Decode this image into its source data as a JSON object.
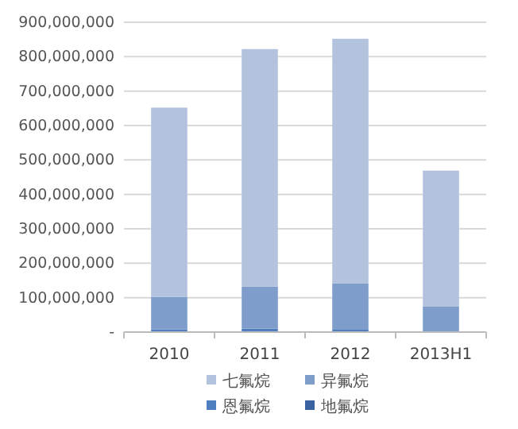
{
  "chart_data": {
    "type": "bar",
    "stacked": true,
    "categories": [
      "2010",
      "2011",
      "2012",
      "2013H1"
    ],
    "series": [
      {
        "name": "地氟烷",
        "color": "#3a62a0",
        "values": [
          null,
          null,
          null,
          null
        ]
      },
      {
        "name": "恩氟烷",
        "color": "#4f7fbf",
        "values": [
          8000000,
          10000000,
          7000000,
          2000000
        ]
      },
      {
        "name": "异氟烷",
        "color": "#7f9dca",
        "values": [
          94000000,
          122000000,
          135000000,
          72000000
        ]
      },
      {
        "name": "七氟烷",
        "color": "#b3c3de",
        "values": [
          550000000,
          690000000,
          710000000,
          395000000
        ]
      }
    ],
    "ylim": [
      0,
      900000000
    ],
    "yticks": [
      {
        "value": 0,
        "label": "-"
      },
      {
        "value": 100000000,
        "label": "100,000,000"
      },
      {
        "value": 200000000,
        "label": "200,000,000"
      },
      {
        "value": 300000000,
        "label": "300,000,000"
      },
      {
        "value": 400000000,
        "label": "400,000,000"
      },
      {
        "value": 500000000,
        "label": "500,000,000"
      },
      {
        "value": 600000000,
        "label": "600,000,000"
      },
      {
        "value": 700000000,
        "label": "700,000,000"
      },
      {
        "value": 800000000,
        "label": "800,000,000"
      },
      {
        "value": 900000000,
        "label": "900,000,000"
      }
    ],
    "grid": "y",
    "legend": "bottom"
  }
}
